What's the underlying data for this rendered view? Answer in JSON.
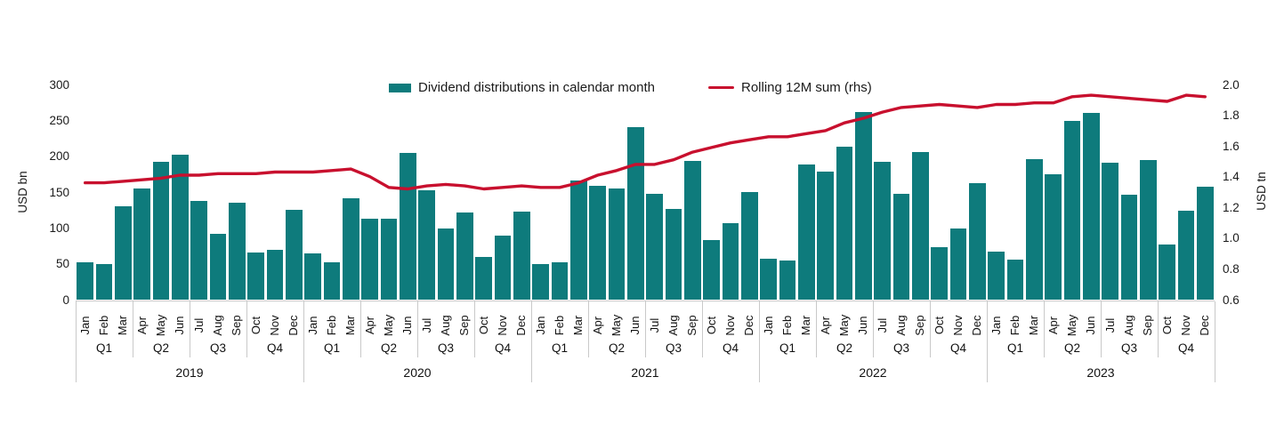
{
  "chart_data": {
    "type": "bar+line",
    "title": "",
    "years": [
      "2019",
      "2020",
      "2021",
      "2022",
      "2023"
    ],
    "months": [
      "Jan",
      "Feb",
      "Mar",
      "Apr",
      "May",
      "Jun",
      "Jul",
      "Aug",
      "Sep",
      "Oct",
      "Nov",
      "Dec"
    ],
    "quarter_labels": [
      "Q1",
      "Q2",
      "Q3",
      "Q4"
    ],
    "legend": {
      "bar_label": "Dividend distributions in calendar month",
      "line_label": "Rolling 12M sum (rhs)"
    },
    "left_axis": {
      "label": "USD bn",
      "min": 0,
      "max": 300,
      "ticks": [
        0,
        50,
        100,
        150,
        200,
        250,
        300
      ]
    },
    "right_axis": {
      "label": "USD tn",
      "min": 0.6,
      "max": 2.0,
      "ticks": [
        0.6,
        0.8,
        1.0,
        1.2,
        1.4,
        1.6,
        1.8,
        2.0
      ]
    },
    "grid": false,
    "legend_position": "top-center",
    "colors": {
      "bar": "#0e7b7c",
      "line": "#c8102e",
      "separator": "#c9c9c9",
      "text": "#1a1a1a"
    },
    "series": [
      {
        "name": "Dividend distributions in calendar month",
        "type": "bar",
        "axis": "left",
        "unit": "USD bn",
        "values": [
          52,
          50,
          130,
          155,
          192,
          202,
          137,
          92,
          135,
          66,
          69,
          125,
          64,
          52,
          141,
          113,
          113,
          205,
          152,
          99,
          122,
          59,
          89,
          123,
          50,
          52,
          166,
          159,
          155,
          241,
          148,
          126,
          194,
          83,
          107,
          150,
          57,
          55,
          188,
          179,
          213,
          262,
          192,
          147,
          206,
          73,
          99,
          163,
          67,
          56,
          196,
          175,
          249,
          260,
          191,
          146,
          195,
          77,
          124,
          158
        ]
      },
      {
        "name": "Rolling 12M sum (rhs)",
        "type": "line",
        "axis": "right",
        "unit": "USD tn",
        "values": [
          1.36,
          1.36,
          1.37,
          1.38,
          1.39,
          1.41,
          1.41,
          1.42,
          1.42,
          1.42,
          1.43,
          1.43,
          1.43,
          1.44,
          1.45,
          1.4,
          1.33,
          1.32,
          1.34,
          1.35,
          1.34,
          1.32,
          1.33,
          1.34,
          1.33,
          1.33,
          1.36,
          1.41,
          1.44,
          1.48,
          1.48,
          1.51,
          1.56,
          1.59,
          1.62,
          1.64,
          1.66,
          1.66,
          1.68,
          1.7,
          1.75,
          1.78,
          1.82,
          1.85,
          1.86,
          1.87,
          1.86,
          1.85,
          1.87,
          1.87,
          1.88,
          1.88,
          1.92,
          1.93,
          1.92,
          1.91,
          1.9,
          1.89,
          1.93,
          1.92
        ]
      }
    ]
  }
}
